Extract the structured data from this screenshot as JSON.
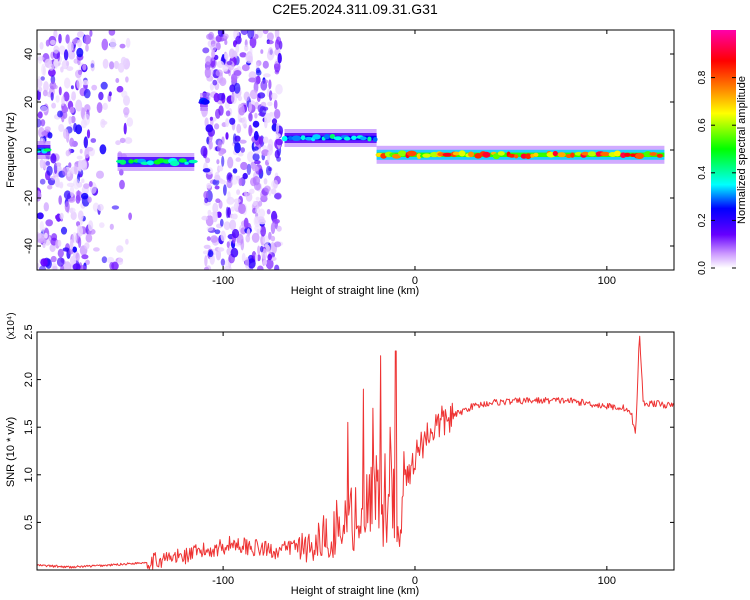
{
  "chart_data": [
    {
      "type": "heatmap",
      "title": "C2E5.2024.311.09.31.G31",
      "xlabel": "Height of straight line (km)",
      "ylabel": "Frequency (Hz)",
      "xlim": [
        -197,
        135
      ],
      "ylim": [
        -50,
        50
      ],
      "x_ticks": [
        -100,
        0,
        100
      ],
      "y_ticks": [
        -40,
        -20,
        0,
        20,
        40
      ],
      "colorbar": {
        "label": "Normalized spectral amplitude",
        "ticks": [
          0.0,
          0.2,
          0.4,
          0.6,
          0.8
        ],
        "range": [
          0,
          1
        ],
        "stops": [
          "#ffffff",
          "#cc99ff",
          "#6600ff",
          "#0000ff",
          "#00ffff",
          "#00ff00",
          "#ffff00",
          "#ff8800",
          "#ff0000",
          "#ff00aa"
        ]
      },
      "regions": [
        {
          "x": [
            -197,
            -170
          ],
          "density": 0.75,
          "kind": "noise"
        },
        {
          "x": [
            -170,
            -148
          ],
          "density": 0.22,
          "kind": "noise"
        },
        {
          "x": [
            -110,
            -70
          ],
          "density": 0.8,
          "kind": "noise"
        }
      ],
      "ridge": [
        {
          "x": [
            -197,
            -190
          ],
          "f": 0,
          "amp": 0.45
        },
        {
          "x": [
            -155,
            -115
          ],
          "f": -5,
          "amp": 0.5
        },
        {
          "x": [
            -112,
            -108
          ],
          "f": 20,
          "amp": 0.3
        },
        {
          "x": [
            -68,
            -20
          ],
          "f": 5,
          "amp": 0.45
        },
        {
          "x": [
            -20,
            130
          ],
          "f": -2,
          "amp": 0.95
        }
      ]
    },
    {
      "type": "line",
      "xlabel": "Height of straight line (km)",
      "ylabel": "SNR (10 * v/v)",
      "y_multiplier": "(x10⁴)",
      "xlim": [
        -197,
        135
      ],
      "ylim": [
        0,
        2.5
      ],
      "x_ticks": [
        -100,
        0,
        100
      ],
      "y_ticks": [
        0.5,
        1.0,
        1.5,
        2.0,
        2.5
      ],
      "color": "#ee3333",
      "series": [
        {
          "points": [
            [
              -197,
              0.05
            ],
            [
              -180,
              0.03
            ],
            [
              -160,
              0.05
            ],
            [
              -140,
              0.08
            ],
            [
              -120,
              0.15
            ],
            [
              -105,
              0.22
            ],
            [
              -95,
              0.28
            ],
            [
              -80,
              0.22
            ],
            [
              -70,
              0.2
            ],
            [
              -60,
              0.28
            ],
            [
              -50,
              0.38
            ],
            [
              -40,
              0.55
            ],
            [
              -30,
              0.72
            ],
            [
              -20,
              0.85
            ],
            [
              -12,
              0.95
            ],
            [
              -5,
              0.9
            ],
            [
              0,
              1.2
            ],
            [
              5,
              1.38
            ],
            [
              10,
              1.5
            ],
            [
              20,
              1.62
            ],
            [
              30,
              1.72
            ],
            [
              40,
              1.76
            ],
            [
              60,
              1.78
            ],
            [
              80,
              1.78
            ],
            [
              100,
              1.72
            ],
            [
              110,
              1.7
            ],
            [
              113,
              1.62
            ],
            [
              115,
              1.4
            ],
            [
              117,
              2.5
            ],
            [
              119,
              1.75
            ],
            [
              125,
              1.75
            ],
            [
              135,
              1.72
            ]
          ],
          "spikes": [
            [
              -18,
              2.25
            ],
            [
              -10,
              2.3
            ],
            [
              -35,
              1.55
            ],
            [
              -27,
              1.9
            ],
            [
              -22,
              1.7
            ],
            [
              -13,
              1.5
            ]
          ]
        }
      ]
    }
  ]
}
